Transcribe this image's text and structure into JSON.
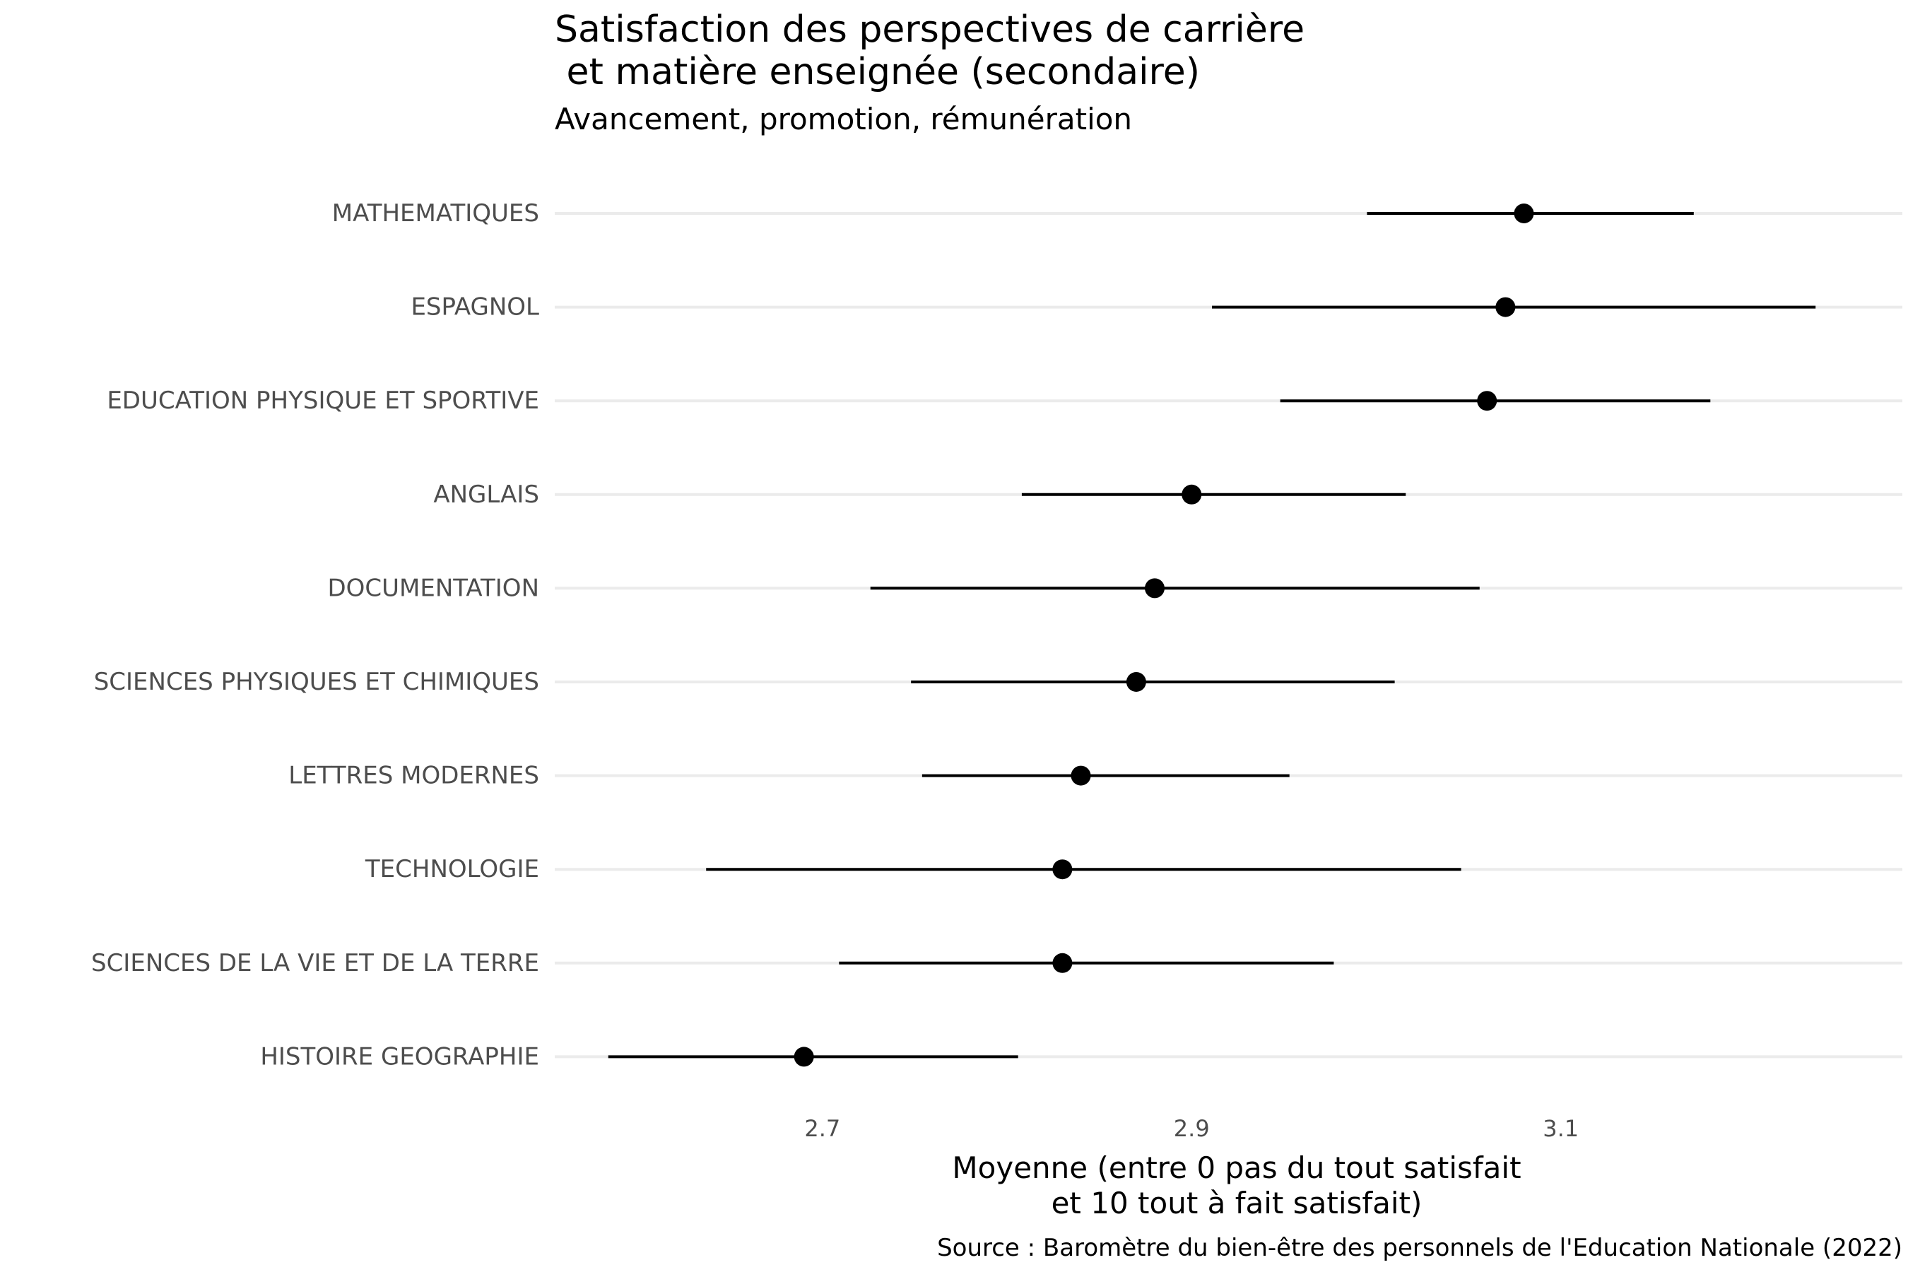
{
  "chart_data": {
    "type": "errorbar",
    "title": "Satisfaction des perspectives de carrière\n et matière enseignée (secondaire)",
    "subtitle": "Avancement, promotion, rémunération",
    "xlabel": "Moyenne (entre 0 pas du tout satisfait\net 10 tout à fait satisfait)",
    "ylabel": "",
    "caption": "Source : Baromètre du bien-être des personnels de l'Education Nationale (2022)",
    "xlim": [
      2.555,
      3.285
    ],
    "x_ticks": [
      {
        "value": 2.7,
        "label": "2.7"
      },
      {
        "value": 2.9,
        "label": "2.9"
      },
      {
        "value": 3.1,
        "label": "3.1"
      }
    ],
    "grid": {
      "major_y": true,
      "major_x": false
    },
    "legend": "none",
    "colors": {
      "point": "#000000",
      "errorbar": "#000000",
      "grid": "#ebebeb",
      "axis_text": "#4d4d4d"
    },
    "categories": [
      "MATHEMATIQUES",
      "ESPAGNOL",
      "EDUCATION PHYSIQUE ET SPORTIVE",
      "ANGLAIS",
      "DOCUMENTATION",
      "SCIENCES PHYSIQUES ET CHIMIQUES",
      "LETTRES MODERNES",
      "TECHNOLOGIE",
      "SCIENCES DE LA VIE ET DE LA TERRE",
      "HISTOIRE GEOGRAPHIE"
    ],
    "values": [
      3.08,
      3.07,
      3.06,
      2.9,
      2.88,
      2.87,
      2.84,
      2.83,
      2.83,
      2.69
    ],
    "lower": [
      2.995,
      2.911,
      2.948,
      2.808,
      2.726,
      2.748,
      2.754,
      2.637,
      2.709,
      2.584
    ],
    "upper": [
      3.172,
      3.238,
      3.181,
      3.016,
      3.056,
      3.01,
      2.953,
      3.046,
      2.977,
      2.806
    ]
  }
}
